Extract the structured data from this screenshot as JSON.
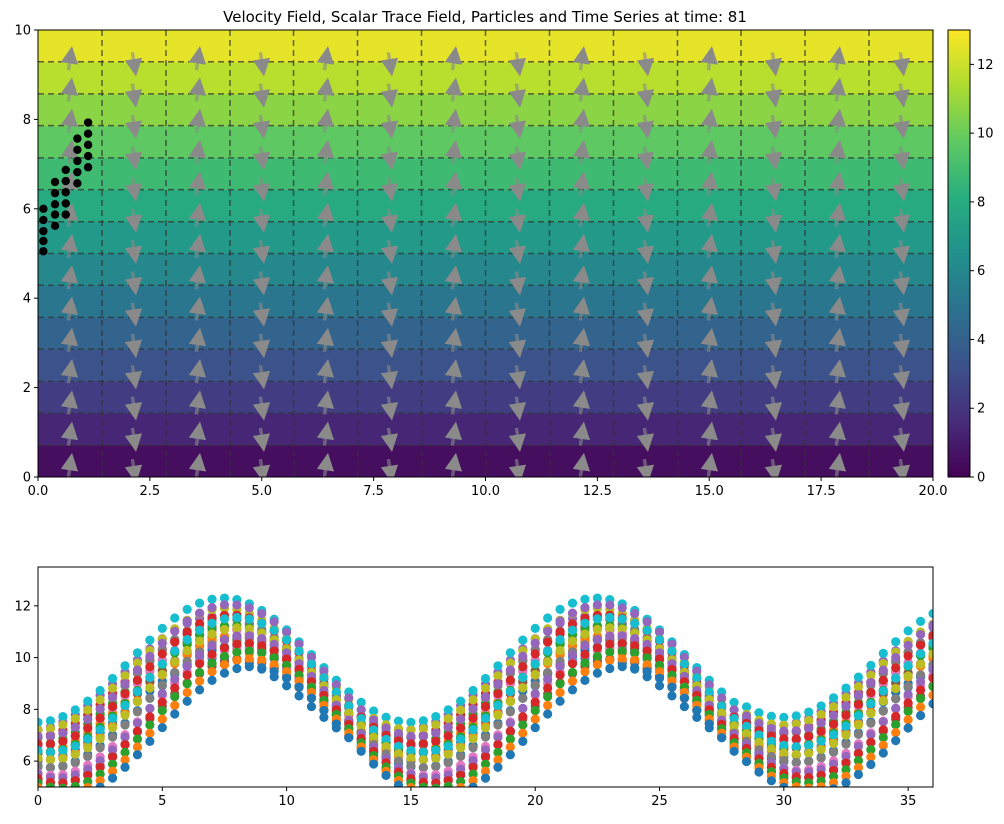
{
  "chart_data": [
    {
      "type": "heatmap",
      "title": "Velocity Field, Scalar Trace Field, Particles and Time Series at time: 81",
      "xlim": [
        0,
        20
      ],
      "ylim": [
        0,
        10
      ],
      "xticks": [
        0,
        2.5,
        5,
        7.5,
        10,
        12.5,
        15,
        17.5,
        20
      ],
      "xtick_labels": [
        "0.0",
        "2.5",
        "5.0",
        "7.5",
        "10.0",
        "12.5",
        "15.0",
        "17.5",
        "20.0"
      ],
      "yticks": [
        0,
        2,
        4,
        6,
        8,
        10
      ],
      "ytick_labels": [
        "0",
        "2",
        "4",
        "6",
        "8",
        "10"
      ],
      "colormap": "viridis",
      "colorbar": {
        "range": [
          0,
          13
        ],
        "ticks": [
          0,
          2,
          4,
          6,
          8,
          10,
          12
        ],
        "tick_labels": [
          "0",
          "2",
          "4",
          "6",
          "8",
          "10",
          "12"
        ]
      },
      "scalar_field": "horizontal bands, value increases linearly with y from 0 at y=0 to 13 at y=10",
      "band_count": 14,
      "dashed_grid_x": [
        1.43,
        2.86,
        4.29,
        5.71,
        7.14,
        8.57,
        10.0,
        11.43,
        12.86,
        14.29,
        15.71,
        17.14,
        18.57
      ],
      "dashed_grid_y": [
        0.71,
        1.43,
        2.14,
        2.86,
        3.57,
        4.29,
        5.0,
        5.71,
        6.43,
        7.14,
        7.86,
        8.57,
        9.29
      ],
      "vector_field": "grey arrows, direction alternates up/down with x, wavelength about 2.86",
      "particles": [
        {
          "x": 0.12,
          "y": 5.05
        },
        {
          "x": 0.12,
          "y": 5.28
        },
        {
          "x": 0.12,
          "y": 5.5
        },
        {
          "x": 0.12,
          "y": 5.75
        },
        {
          "x": 0.12,
          "y": 6.0
        },
        {
          "x": 0.38,
          "y": 5.62
        },
        {
          "x": 0.38,
          "y": 5.87
        },
        {
          "x": 0.38,
          "y": 6.1
        },
        {
          "x": 0.38,
          "y": 6.35
        },
        {
          "x": 0.38,
          "y": 6.6
        },
        {
          "x": 0.62,
          "y": 5.87
        },
        {
          "x": 0.62,
          "y": 6.12
        },
        {
          "x": 0.62,
          "y": 6.37
        },
        {
          "x": 0.62,
          "y": 6.62
        },
        {
          "x": 0.62,
          "y": 6.87
        },
        {
          "x": 0.88,
          "y": 6.57
        },
        {
          "x": 0.88,
          "y": 6.82
        },
        {
          "x": 0.88,
          "y": 7.07
        },
        {
          "x": 0.88,
          "y": 7.32
        },
        {
          "x": 0.88,
          "y": 7.57
        },
        {
          "x": 1.12,
          "y": 6.93
        },
        {
          "x": 1.12,
          "y": 7.18
        },
        {
          "x": 1.12,
          "y": 7.43
        },
        {
          "x": 1.12,
          "y": 7.68
        },
        {
          "x": 1.12,
          "y": 7.93
        }
      ]
    },
    {
      "type": "scatter",
      "title": "",
      "xlim": [
        0,
        36
      ],
      "ylim": [
        5,
        13.5
      ],
      "xticks": [
        0,
        5,
        10,
        15,
        20,
        25,
        30,
        35
      ],
      "xtick_labels": [
        "0",
        "5",
        "10",
        "15",
        "20",
        "25",
        "30",
        "35"
      ],
      "yticks": [
        6,
        8,
        10,
        12
      ],
      "ytick_labels": [
        "6",
        "8",
        "10",
        "12"
      ],
      "x_start": 0,
      "x_end": 36,
      "x_step": 0.5,
      "series": [
        {
          "color": "#1f77b4",
          "offset": 7.1,
          "amplitude": 2.55,
          "phase": 0.0
        },
        {
          "color": "#ff7f0e",
          "offset": 7.35,
          "amplitude": 2.6,
          "phase": 0.03
        },
        {
          "color": "#2ca02c",
          "offset": 7.6,
          "amplitude": 2.65,
          "phase": 0.06
        },
        {
          "color": "#d62728",
          "offset": 7.85,
          "amplitude": 2.7,
          "phase": 0.09
        },
        {
          "color": "#9467bd",
          "offset": 8.1,
          "amplitude": 2.75,
          "phase": 0.12
        },
        {
          "color": "#8c564b",
          "offset": 7.55,
          "amplitude": 2.4,
          "phase": 0.18
        },
        {
          "color": "#e377c2",
          "offset": 7.9,
          "amplitude": 2.45,
          "phase": 0.2
        },
        {
          "color": "#7f7f7f",
          "offset": 8.25,
          "amplitude": 2.5,
          "phase": 0.22
        },
        {
          "color": "#bcbd22",
          "offset": 8.6,
          "amplitude": 2.55,
          "phase": 0.24
        },
        {
          "color": "#17becf",
          "offset": 8.95,
          "amplitude": 2.6,
          "phase": 0.26
        },
        {
          "color": "#1f77b4",
          "offset": 8.1,
          "amplitude": 2.35,
          "phase": 0.3
        },
        {
          "color": "#ff7f0e",
          "offset": 8.45,
          "amplitude": 2.4,
          "phase": 0.32
        },
        {
          "color": "#2ca02c",
          "offset": 8.8,
          "amplitude": 2.45,
          "phase": 0.34
        },
        {
          "color": "#d62728",
          "offset": 9.15,
          "amplitude": 2.5,
          "phase": 0.36
        },
        {
          "color": "#9467bd",
          "offset": 9.5,
          "amplitude": 2.55,
          "phase": 0.38
        },
        {
          "color": "#8c564b",
          "offset": 8.5,
          "amplitude": 2.2,
          "phase": 0.42
        },
        {
          "color": "#e377c2",
          "offset": 8.85,
          "amplitude": 2.25,
          "phase": 0.44
        },
        {
          "color": "#7f7f7f",
          "offset": 9.2,
          "amplitude": 2.3,
          "phase": 0.46
        },
        {
          "color": "#bcbd22",
          "offset": 9.55,
          "amplitude": 2.35,
          "phase": 0.48
        },
        {
          "color": "#17becf",
          "offset": 9.9,
          "amplitude": 2.4,
          "phase": 0.5
        },
        {
          "color": "#1f77b4",
          "offset": 8.0,
          "amplitude": 2.0,
          "phase": 0.54
        },
        {
          "color": "#ff7f0e",
          "offset": 8.35,
          "amplitude": 2.05,
          "phase": 0.56
        },
        {
          "color": "#2ca02c",
          "offset": 8.7,
          "amplitude": 2.1,
          "phase": 0.58
        },
        {
          "color": "#d62728",
          "offset": 9.05,
          "amplitude": 2.15,
          "phase": 0.6
        },
        {
          "color": "#9467bd",
          "offset": 9.4,
          "amplitude": 2.2,
          "phase": 0.62
        }
      ]
    }
  ]
}
